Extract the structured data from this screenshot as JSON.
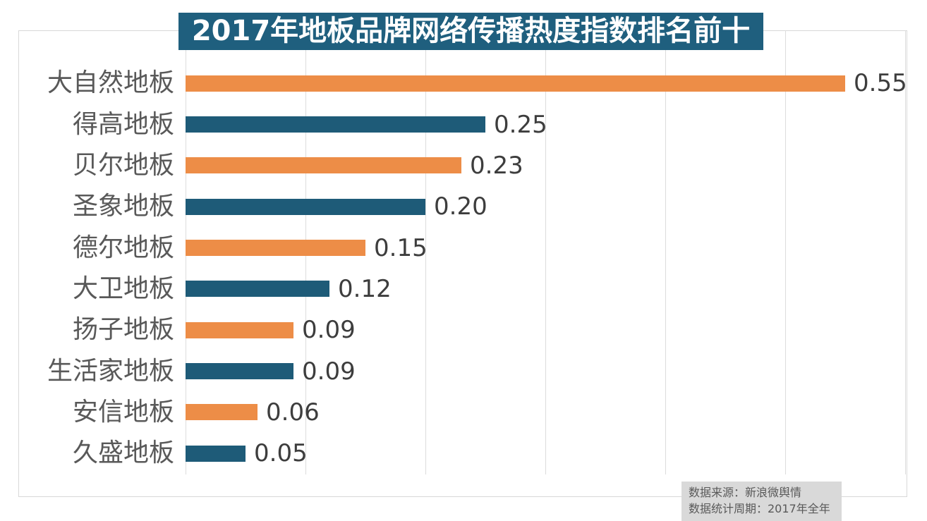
{
  "title": "2017年地板品牌网络传播热度指数排名前十",
  "source": {
    "line1": "数据来源：新浪微舆情",
    "line2": "数据统计周期：2017年全年"
  },
  "colors": {
    "orange": "#ed8d47",
    "teal": "#1e5b78",
    "title_bg": "#1f5f7e",
    "title_text": "#ffffff",
    "grid": "#dcdcdc",
    "frame_border": "#d8d8d8",
    "category_text": "#595959",
    "value_text": "#3d3d3d",
    "source_bg": "#d9d9d9",
    "source_text": "#595959"
  },
  "chart_data": {
    "type": "bar",
    "orientation": "horizontal",
    "title": "2017年地板品牌网络传播热度指数排名前十",
    "categories": [
      "大自然地板",
      "得高地板",
      "贝尔地板",
      "圣象地板",
      "德尔地板",
      "大卫地板",
      "扬子地板",
      "生活家地板",
      "安信地板",
      "久盛地板"
    ],
    "values": [
      0.55,
      0.25,
      0.23,
      0.2,
      0.15,
      0.12,
      0.09,
      0.09,
      0.06,
      0.05
    ],
    "value_labels": [
      "0.55",
      "0.25",
      "0.23",
      "0.20",
      "0.15",
      "0.12",
      "0.09",
      "0.09",
      "0.06",
      "0.05"
    ],
    "bar_colors_alternate": [
      "#ed8d47",
      "#1e5b78"
    ],
    "xlim": [
      0,
      0.6
    ],
    "grid_step": 0.1,
    "grid": true,
    "legend": false,
    "xlabel": "",
    "ylabel": ""
  }
}
